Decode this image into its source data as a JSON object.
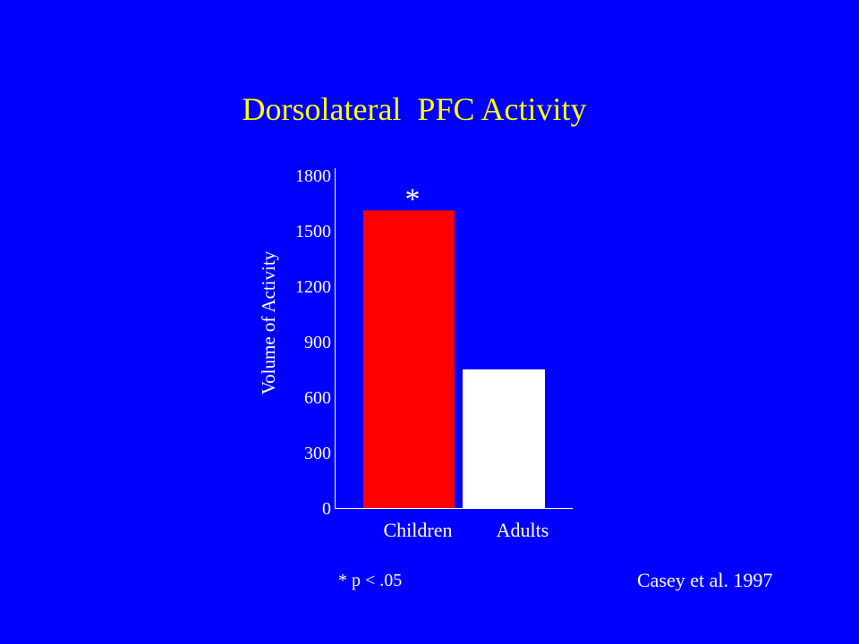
{
  "slide": {
    "background_color": "#0000FF",
    "text_color": "#FFFFFF",
    "title_color": "#FFFF00",
    "title": "Dorsolateral  PFC Activity",
    "footnote": "* p < .05",
    "citation": "Casey et al. 1997"
  },
  "chart_data": {
    "type": "bar",
    "title": "Dorsolateral  PFC Activity",
    "xlabel": "",
    "ylabel": "Volume of Activity",
    "ylim": [
      0,
      1800
    ],
    "yticks": [
      "0",
      "300",
      "600",
      "900",
      "1200",
      "1500",
      "1800"
    ],
    "categories": [
      "Children",
      "Adults"
    ],
    "values": [
      1610,
      750
    ],
    "bar_colors": [
      "#FF0000",
      "#FFFFFF"
    ],
    "annotations": [
      {
        "category": "Children",
        "text": "*"
      }
    ],
    "grid": false,
    "legend": "none"
  }
}
